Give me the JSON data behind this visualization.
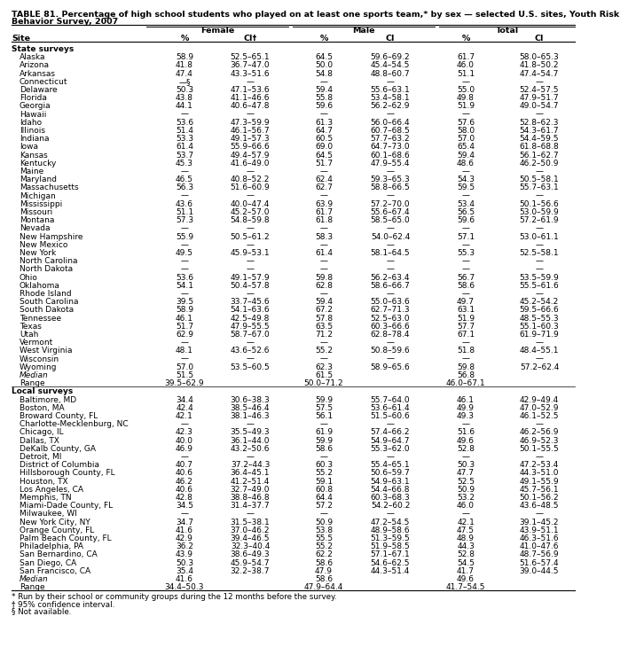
{
  "title1": "TABLE 81. Percentage of high school students who played on at least one sports team,* by sex — selected U.S. sites, Youth Risk",
  "title2": "Behavior Survey, 2007",
  "footnotes": [
    "* Run by their school or community groups during the 12 months before the survey.",
    "† 95% confidence interval.",
    "§ Not available."
  ],
  "state_label": "State surveys",
  "local_label": "Local surveys",
  "state_rows": [
    [
      "Alaska",
      "58.9",
      "52.5–65.1",
      "64.5",
      "59.6–69.2",
      "61.7",
      "58.0–65.3"
    ],
    [
      "Arizona",
      "41.8",
      "36.7–47.0",
      "50.0",
      "45.4–54.5",
      "46.0",
      "41.8–50.2"
    ],
    [
      "Arkansas",
      "47.4",
      "43.3–51.6",
      "54.8",
      "48.8–60.7",
      "51.1",
      "47.4–54.7"
    ],
    [
      "Connecticut",
      "—§",
      "—",
      "—",
      "—",
      "—",
      "—"
    ],
    [
      "Delaware",
      "50.3",
      "47.1–53.6",
      "59.4",
      "55.6–63.1",
      "55.0",
      "52.4–57.5"
    ],
    [
      "Florida",
      "43.8",
      "41.1–46.6",
      "55.8",
      "53.4–58.1",
      "49.8",
      "47.9–51.7"
    ],
    [
      "Georgia",
      "44.1",
      "40.6–47.8",
      "59.6",
      "56.2–62.9",
      "51.9",
      "49.0–54.7"
    ],
    [
      "Hawaii",
      "—",
      "—",
      "—",
      "—",
      "—",
      "—"
    ],
    [
      "Idaho",
      "53.6",
      "47.3–59.9",
      "61.3",
      "56.0–66.4",
      "57.6",
      "52.8–62.3"
    ],
    [
      "Illinois",
      "51.4",
      "46.1–56.7",
      "64.7",
      "60.7–68.5",
      "58.0",
      "54.3–61.7"
    ],
    [
      "Indiana",
      "53.3",
      "49.1–57.3",
      "60.5",
      "57.7–63.2",
      "57.0",
      "54.4–59.5"
    ],
    [
      "Iowa",
      "61.4",
      "55.9–66.6",
      "69.0",
      "64.7–73.0",
      "65.4",
      "61.8–68.8"
    ],
    [
      "Kansas",
      "53.7",
      "49.4–57.9",
      "64.5",
      "60.1–68.6",
      "59.4",
      "56.1–62.7"
    ],
    [
      "Kentucky",
      "45.3",
      "41.6–49.0",
      "51.7",
      "47.9–55.4",
      "48.6",
      "46.2–50.9"
    ],
    [
      "Maine",
      "—",
      "—",
      "—",
      "—",
      "—",
      "—"
    ],
    [
      "Maryland",
      "46.5",
      "40.8–52.2",
      "62.4",
      "59.3–65.3",
      "54.3",
      "50.5–58.1"
    ],
    [
      "Massachusetts",
      "56.3",
      "51.6–60.9",
      "62.7",
      "58.8–66.5",
      "59.5",
      "55.7–63.1"
    ],
    [
      "Michigan",
      "—",
      "—",
      "—",
      "—",
      "—",
      "—"
    ],
    [
      "Mississippi",
      "43.6",
      "40.0–47.4",
      "63.9",
      "57.2–70.0",
      "53.4",
      "50.1–56.6"
    ],
    [
      "Missouri",
      "51.1",
      "45.2–57.0",
      "61.7",
      "55.6–67.4",
      "56.5",
      "53.0–59.9"
    ],
    [
      "Montana",
      "57.3",
      "54.8–59.8",
      "61.8",
      "58.5–65.0",
      "59.6",
      "57.2–61.9"
    ],
    [
      "Nevada",
      "—",
      "—",
      "—",
      "—",
      "—",
      "—"
    ],
    [
      "New Hampshire",
      "55.9",
      "50.5–61.2",
      "58.3",
      "54.0–62.4",
      "57.1",
      "53.0–61.1"
    ],
    [
      "New Mexico",
      "—",
      "—",
      "—",
      "—",
      "—",
      "—"
    ],
    [
      "New York",
      "49.5",
      "45.9–53.1",
      "61.4",
      "58.1–64.5",
      "55.3",
      "52.5–58.1"
    ],
    [
      "North Carolina",
      "—",
      "—",
      "—",
      "—",
      "—",
      "—"
    ],
    [
      "North Dakota",
      "—",
      "—",
      "—",
      "—",
      "—",
      "—"
    ],
    [
      "Ohio",
      "53.6",
      "49.1–57.9",
      "59.8",
      "56.2–63.4",
      "56.7",
      "53.5–59.9"
    ],
    [
      "Oklahoma",
      "54.1",
      "50.4–57.8",
      "62.8",
      "58.6–66.7",
      "58.6",
      "55.5–61.6"
    ],
    [
      "Rhode Island",
      "—",
      "—",
      "—",
      "—",
      "—",
      "—"
    ],
    [
      "South Carolina",
      "39.5",
      "33.7–45.6",
      "59.4",
      "55.0–63.6",
      "49.7",
      "45.2–54.2"
    ],
    [
      "South Dakota",
      "58.9",
      "54.1–63.6",
      "67.2",
      "62.7–71.3",
      "63.1",
      "59.5–66.6"
    ],
    [
      "Tennessee",
      "46.1",
      "42.5–49.8",
      "57.8",
      "52.5–63.0",
      "51.9",
      "48.5–55.3"
    ],
    [
      "Texas",
      "51.7",
      "47.9–55.5",
      "63.5",
      "60.3–66.6",
      "57.7",
      "55.1–60.3"
    ],
    [
      "Utah",
      "62.9",
      "58.7–67.0",
      "71.2",
      "62.8–78.4",
      "67.1",
      "61.9–71.9"
    ],
    [
      "Vermont",
      "—",
      "—",
      "—",
      "—",
      "—",
      "—"
    ],
    [
      "West Virginia",
      "48.1",
      "43.6–52.6",
      "55.2",
      "50.8–59.6",
      "51.8",
      "48.4–55.1"
    ],
    [
      "Wisconsin",
      "—",
      "—",
      "—",
      "—",
      "—",
      "—"
    ],
    [
      "Wyoming",
      "57.0",
      "53.5–60.5",
      "62.3",
      "58.9–65.6",
      "59.8",
      "57.2–62.4"
    ]
  ],
  "state_median": [
    "Median",
    "51.5",
    "",
    "61.5",
    "",
    "56.8",
    ""
  ],
  "state_range": [
    "Range",
    "39.5–62.9",
    "",
    "50.0–71.2",
    "",
    "46.0–67.1",
    ""
  ],
  "local_rows": [
    [
      "Baltimore, MD",
      "34.4",
      "30.6–38.3",
      "59.9",
      "55.7–64.0",
      "46.1",
      "42.9–49.4"
    ],
    [
      "Boston, MA",
      "42.4",
      "38.5–46.4",
      "57.5",
      "53.6–61.4",
      "49.9",
      "47.0–52.9"
    ],
    [
      "Broward County, FL",
      "42.1",
      "38.1–46.3",
      "56.1",
      "51.5–60.6",
      "49.3",
      "46.1–52.5"
    ],
    [
      "Charlotte-Mecklenburg, NC",
      "—",
      "—",
      "—",
      "—",
      "—",
      "—"
    ],
    [
      "Chicago, IL",
      "42.3",
      "35.5–49.3",
      "61.9",
      "57.4–66.2",
      "51.6",
      "46.2–56.9"
    ],
    [
      "Dallas, TX",
      "40.0",
      "36.1–44.0",
      "59.9",
      "54.9–64.7",
      "49.6",
      "46.9–52.3"
    ],
    [
      "DeKalb County, GA",
      "46.9",
      "43.2–50.6",
      "58.6",
      "55.3–62.0",
      "52.8",
      "50.1–55.5"
    ],
    [
      "Detroit, MI",
      "—",
      "—",
      "—",
      "—",
      "—",
      "—"
    ],
    [
      "District of Columbia",
      "40.7",
      "37.2–44.3",
      "60.3",
      "55.4–65.1",
      "50.3",
      "47.2–53.4"
    ],
    [
      "Hillsborough County, FL",
      "40.6",
      "36.4–45.1",
      "55.2",
      "50.6–59.7",
      "47.7",
      "44.3–51.0"
    ],
    [
      "Houston, TX",
      "46.2",
      "41.2–51.4",
      "59.1",
      "54.9–63.1",
      "52.5",
      "49.1–55.9"
    ],
    [
      "Los Angeles, CA",
      "40.6",
      "32.7–49.0",
      "60.8",
      "54.4–66.8",
      "50.9",
      "45.7–56.1"
    ],
    [
      "Memphis, TN",
      "42.8",
      "38.8–46.8",
      "64.4",
      "60.3–68.3",
      "53.2",
      "50.1–56.2"
    ],
    [
      "Miami-Dade County, FL",
      "34.5",
      "31.4–37.7",
      "57.2",
      "54.2–60.2",
      "46.0",
      "43.6–48.5"
    ],
    [
      "Milwaukee, WI",
      "—",
      "—",
      "—",
      "—",
      "—",
      "—"
    ],
    [
      "New York City, NY",
      "34.7",
      "31.5–38.1",
      "50.9",
      "47.2–54.5",
      "42.1",
      "39.1–45.2"
    ],
    [
      "Orange County, FL",
      "41.6",
      "37.0–46.2",
      "53.8",
      "48.9–58.6",
      "47.5",
      "43.9–51.1"
    ],
    [
      "Palm Beach County, FL",
      "42.9",
      "39.4–46.5",
      "55.5",
      "51.3–59.5",
      "48.9",
      "46.3–51.6"
    ],
    [
      "Philadelphia, PA",
      "36.2",
      "32.3–40.4",
      "55.2",
      "51.9–58.5",
      "44.3",
      "41.0–47.6"
    ],
    [
      "San Bernardino, CA",
      "43.9",
      "38.6–49.3",
      "62.2",
      "57.1–67.1",
      "52.8",
      "48.7–56.9"
    ],
    [
      "San Diego, CA",
      "50.3",
      "45.9–54.7",
      "58.6",
      "54.6–62.5",
      "54.5",
      "51.6–57.4"
    ],
    [
      "San Francisco, CA",
      "35.4",
      "32.2–38.7",
      "47.9",
      "44.3–51.4",
      "41.7",
      "39.0–44.5"
    ]
  ],
  "local_median": [
    "Median",
    "41.6",
    "",
    "58.6",
    "",
    "49.6",
    ""
  ],
  "local_range": [
    "Range",
    "34.4–50.3",
    "",
    "47.9–64.4",
    "",
    "41.7–54.5",
    ""
  ]
}
